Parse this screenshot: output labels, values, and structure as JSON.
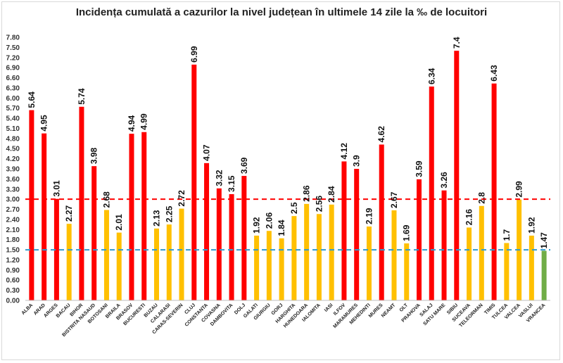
{
  "chart_data": {
    "type": "bar",
    "title": "Incidența cumulată a cazurilor la nivel județean în ultimele 14 zile la ‰ de locuitori",
    "xlabel": "",
    "ylabel": "",
    "ylim": [
      0,
      7.8
    ],
    "yticks": [
      "0.00",
      "0.30",
      "0.60",
      "0.90",
      "1.20",
      "1.50",
      "1.80",
      "2.10",
      "2.40",
      "2.70",
      "3.00",
      "3.30",
      "3.60",
      "3.90",
      "4.20",
      "4.50",
      "4.80",
      "5.10",
      "5.40",
      "5.70",
      "6.00",
      "6.30",
      "6.60",
      "6.90",
      "7.20",
      "7.50",
      "7.80"
    ],
    "grid": false,
    "legend": "none",
    "categories": [
      "ALBA",
      "ARAD",
      "ARGES",
      "BACAU",
      "BIHOR",
      "BISTRITA NASAUD",
      "BOTOSANI",
      "BRAILA",
      "BRASOV",
      "BUCURESTI",
      "BUZAU",
      "CALARASI",
      "CARAS-SEVERIN",
      "CLUJ",
      "CONSTANTA",
      "COVASNA",
      "DAMBOVITA",
      "DOLJ",
      "GALATI",
      "GIURGIU",
      "GORJ",
      "HARGHITA",
      "HUNEDOARA",
      "IALOMITA",
      "IASI",
      "ILFOV",
      "MARAMURES",
      "MEHEDINTI",
      "MURES",
      "NEAMT",
      "OLT",
      "PRAHOVA",
      "SALAJ",
      "SATU MARE",
      "SIBIU",
      "SUCEAVA",
      "TELEORMAN",
      "TIMIS",
      "TULCEA",
      "VALCEA",
      "VASLUI",
      "VRANCEA"
    ],
    "values": [
      5.64,
      4.95,
      3.01,
      2.27,
      5.74,
      3.98,
      2.68,
      2.01,
      4.94,
      4.99,
      2.13,
      2.25,
      2.72,
      6.99,
      4.07,
      3.32,
      3.15,
      3.69,
      1.92,
      2.06,
      1.84,
      2.5,
      2.86,
      2.56,
      2.84,
      4.12,
      3.9,
      2.19,
      4.62,
      2.67,
      1.69,
      3.59,
      6.34,
      3.26,
      7.4,
      2.16,
      2.8,
      6.43,
      1.7,
      2.99,
      1.92,
      1.47
    ],
    "value_labels": [
      "5.64",
      "4.95",
      "3.01",
      "2.27",
      "5.74",
      "3.98",
      "2.68",
      "2.01",
      "4.94",
      "4.99",
      "2.13",
      "2.25",
      "2.72",
      "6.99",
      "4.07",
      "3.32",
      "3.15",
      "3.69",
      "1.92",
      "2.06",
      "1.84",
      "2.5",
      "2.86",
      "2.56",
      "2.84",
      "4.12",
      "3.9",
      "2.19",
      "4.62",
      "2.67",
      "1.69",
      "3.59",
      "6.34",
      "3.26",
      "7.4",
      "2.16",
      "2.8",
      "6.43",
      "1.7",
      "2.99",
      "1.92",
      "1.47"
    ],
    "thresholds": [
      {
        "value": 3.0,
        "color": "#ff0000",
        "style": "dashed"
      },
      {
        "value": 1.5,
        "color": "#2e9bd0",
        "style": "dashed"
      }
    ],
    "colors": {
      "high": "#ff0000",
      "medium": "#ffc000",
      "low": "#70ad47"
    }
  }
}
